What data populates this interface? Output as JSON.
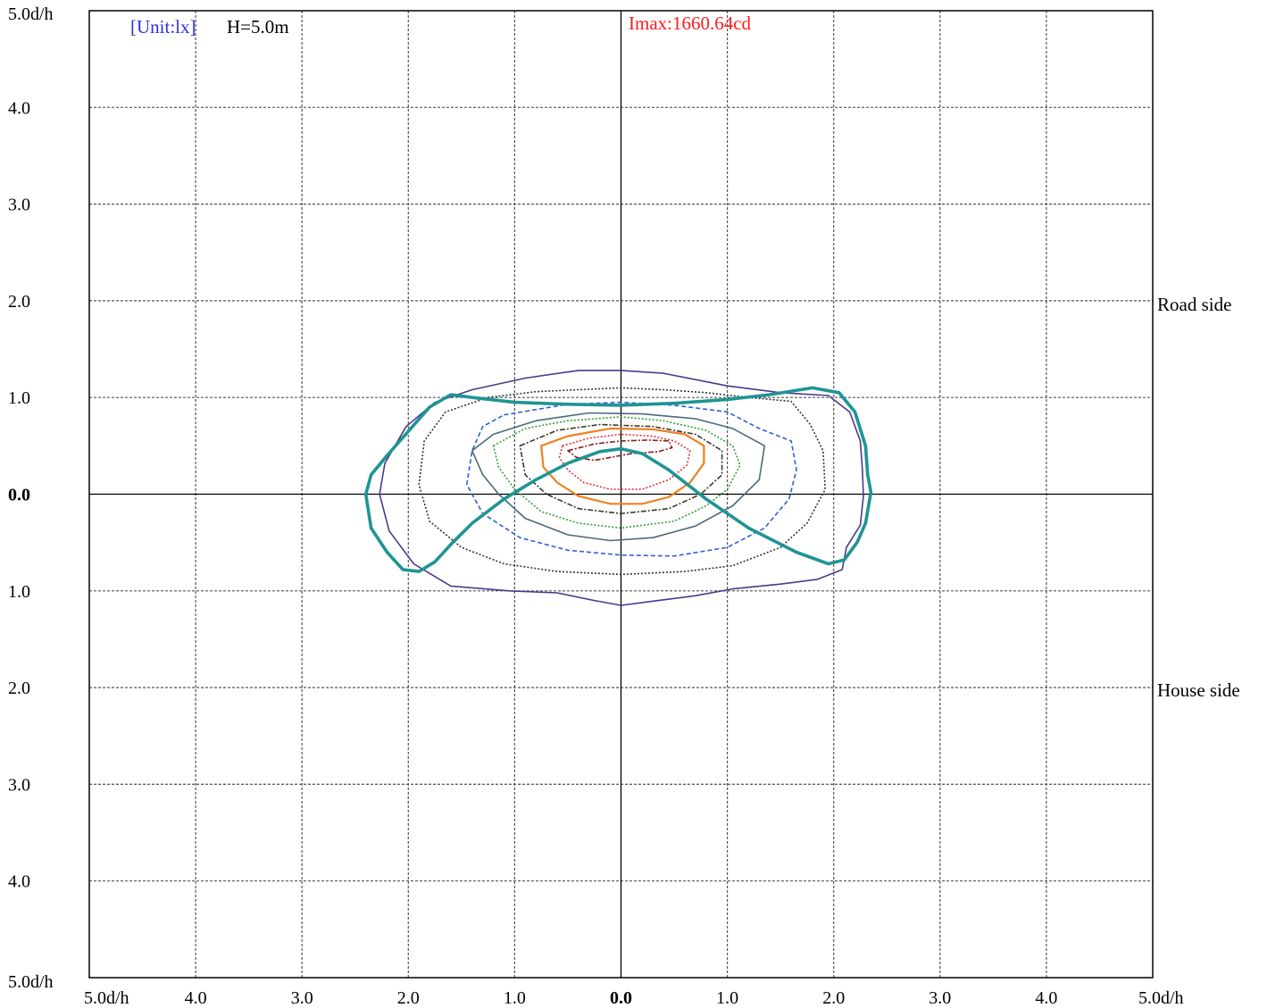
{
  "chart_data": {
    "type": "isolux contour",
    "header": {
      "unit_label": "[Unit:lx]",
      "height_label": "H=5.0m",
      "imax_label": "Imax:1660.64cd"
    },
    "colors": {
      "unit_label": "#3030e0",
      "height_label": "#000000",
      "imax_label": "#ff1a1a",
      "grid": "#555555",
      "axis": "#000000"
    },
    "xlim": [
      -5,
      5
    ],
    "ylim": [
      -5,
      5
    ],
    "x_tick_labels": [
      "5.0d/h",
      "4.0",
      "3.0",
      "2.0",
      "1.0",
      "0.0",
      "1.0",
      "2.0",
      "3.0",
      "4.0",
      "5.0d/h"
    ],
    "y_tick_labels": [
      "5.0d/h",
      "4.0",
      "3.0",
      "2.0",
      "1.0",
      "0.0",
      "1.0",
      "2.0",
      "3.0",
      "4.0",
      "5.0d/h"
    ],
    "side_labels": {
      "road": "Road side",
      "house": "House side"
    },
    "contours": [
      {
        "color": "#4a3a8c",
        "style": "solid",
        "weight": "thin",
        "points": [
          [
            2.08,
            -0.78
          ],
          [
            2.12,
            -0.55
          ],
          [
            2.25,
            -0.32
          ],
          [
            2.28,
            -0.02
          ],
          [
            2.27,
            0.25
          ],
          [
            2.25,
            0.55
          ],
          [
            2.15,
            0.85
          ],
          [
            1.95,
            1.02
          ],
          [
            1.5,
            1.05
          ],
          [
            1.0,
            1.12
          ],
          [
            0.4,
            1.25
          ],
          [
            0.0,
            1.28
          ],
          [
            -0.4,
            1.28
          ],
          [
            -0.9,
            1.2
          ],
          [
            -1.4,
            1.08
          ],
          [
            -1.75,
            0.95
          ],
          [
            -2.02,
            0.7
          ],
          [
            -2.22,
            0.32
          ],
          [
            -2.27,
            0.0
          ],
          [
            -2.18,
            -0.38
          ],
          [
            -1.95,
            -0.72
          ],
          [
            -1.6,
            -0.95
          ],
          [
            -1.05,
            -1.0
          ],
          [
            -0.6,
            -1.02
          ],
          [
            -0.25,
            -1.1
          ],
          [
            0.0,
            -1.15
          ],
          [
            0.35,
            -1.1
          ],
          [
            0.7,
            -1.05
          ],
          [
            1.05,
            -0.98
          ],
          [
            1.5,
            -0.93
          ],
          [
            1.85,
            -0.88
          ]
        ]
      },
      {
        "color": "#333333",
        "style": "dotted",
        "weight": "thin",
        "points": [
          [
            -1.25,
            1.0
          ],
          [
            -0.8,
            1.06
          ],
          [
            -0.4,
            1.08
          ],
          [
            0.0,
            1.1
          ],
          [
            0.4,
            1.08
          ],
          [
            0.8,
            1.05
          ],
          [
            1.2,
            1.0
          ],
          [
            1.6,
            0.96
          ],
          [
            1.78,
            0.72
          ],
          [
            1.9,
            0.45
          ],
          [
            1.92,
            0.05
          ],
          [
            1.75,
            -0.3
          ],
          [
            1.5,
            -0.55
          ],
          [
            1.05,
            -0.74
          ],
          [
            0.6,
            -0.8
          ],
          [
            0.0,
            -0.83
          ],
          [
            -0.6,
            -0.8
          ],
          [
            -1.1,
            -0.72
          ],
          [
            -1.5,
            -0.55
          ],
          [
            -1.8,
            -0.28
          ],
          [
            -1.9,
            0.1
          ],
          [
            -1.85,
            0.55
          ],
          [
            -1.65,
            0.85
          ]
        ]
      },
      {
        "color": "#2f5fd8",
        "style": "dashed",
        "weight": "thin",
        "points": [
          [
            -1.1,
            0.82
          ],
          [
            -0.5,
            0.93
          ],
          [
            0.0,
            0.95
          ],
          [
            0.5,
            0.92
          ],
          [
            1.0,
            0.85
          ],
          [
            1.3,
            0.68
          ],
          [
            1.6,
            0.55
          ],
          [
            1.65,
            0.25
          ],
          [
            1.58,
            -0.05
          ],
          [
            1.35,
            -0.35
          ],
          [
            1.0,
            -0.55
          ],
          [
            0.5,
            -0.64
          ],
          [
            0.0,
            -0.63
          ],
          [
            -0.5,
            -0.58
          ],
          [
            -0.95,
            -0.45
          ],
          [
            -1.3,
            -0.2
          ],
          [
            -1.45,
            0.1
          ],
          [
            -1.4,
            0.45
          ],
          [
            -1.3,
            0.7
          ]
        ]
      },
      {
        "color": "#4a6a7a",
        "style": "solid",
        "weight": "thin",
        "points": [
          [
            -1.2,
            0.62
          ],
          [
            -0.8,
            0.76
          ],
          [
            -0.3,
            0.84
          ],
          [
            0.2,
            0.83
          ],
          [
            0.7,
            0.78
          ],
          [
            1.05,
            0.68
          ],
          [
            1.35,
            0.5
          ],
          [
            1.3,
            0.15
          ],
          [
            1.05,
            -0.12
          ],
          [
            0.7,
            -0.33
          ],
          [
            0.3,
            -0.45
          ],
          [
            -0.1,
            -0.48
          ],
          [
            -0.5,
            -0.42
          ],
          [
            -0.9,
            -0.25
          ],
          [
            -1.15,
            0.0
          ],
          [
            -1.3,
            0.2
          ],
          [
            -1.4,
            0.45
          ]
        ]
      },
      {
        "color": "#2fa02f",
        "style": "dotted",
        "weight": "thin",
        "points": [
          [
            -1.2,
            0.5
          ],
          [
            -0.9,
            0.68
          ],
          [
            -0.5,
            0.76
          ],
          [
            0.0,
            0.8
          ],
          [
            0.4,
            0.76
          ],
          [
            0.8,
            0.66
          ],
          [
            1.05,
            0.5
          ],
          [
            1.12,
            0.3
          ],
          [
            1.0,
            0.05
          ],
          [
            0.8,
            -0.12
          ],
          [
            0.5,
            -0.28
          ],
          [
            0.0,
            -0.35
          ],
          [
            -0.4,
            -0.3
          ],
          [
            -0.75,
            -0.18
          ],
          [
            -1.0,
            0.05
          ],
          [
            -1.15,
            0.28
          ]
        ]
      },
      {
        "color": "#3a3a2a",
        "style": "dashdot",
        "weight": "thin",
        "points": [
          [
            -0.95,
            0.5
          ],
          [
            -0.6,
            0.66
          ],
          [
            -0.2,
            0.72
          ],
          [
            0.3,
            0.7
          ],
          [
            0.7,
            0.62
          ],
          [
            0.95,
            0.45
          ],
          [
            0.95,
            0.2
          ],
          [
            0.75,
            0.0
          ],
          [
            0.45,
            -0.15
          ],
          [
            0.0,
            -0.2
          ],
          [
            -0.4,
            -0.15
          ],
          [
            -0.7,
            0.0
          ],
          [
            -0.9,
            0.2
          ]
        ]
      },
      {
        "color": "#f08020",
        "style": "solid",
        "weight": "medium",
        "points": [
          [
            -0.75,
            0.5
          ],
          [
            -0.5,
            0.6
          ],
          [
            -0.1,
            0.68
          ],
          [
            0.3,
            0.67
          ],
          [
            0.6,
            0.62
          ],
          [
            0.78,
            0.5
          ],
          [
            0.78,
            0.32
          ],
          [
            0.65,
            0.12
          ],
          [
            0.45,
            -0.03
          ],
          [
            0.2,
            -0.1
          ],
          [
            -0.1,
            -0.1
          ],
          [
            -0.4,
            -0.02
          ],
          [
            -0.6,
            0.12
          ],
          [
            -0.73,
            0.28
          ]
        ]
      },
      {
        "color": "#e03030",
        "style": "dotted",
        "weight": "thin",
        "points": [
          [
            -0.55,
            0.5
          ],
          [
            -0.3,
            0.58
          ],
          [
            0.0,
            0.62
          ],
          [
            0.3,
            0.6
          ],
          [
            0.5,
            0.55
          ],
          [
            0.65,
            0.45
          ],
          [
            0.62,
            0.3
          ],
          [
            0.45,
            0.15
          ],
          [
            0.2,
            0.05
          ],
          [
            -0.1,
            0.05
          ],
          [
            -0.35,
            0.12
          ],
          [
            -0.5,
            0.25
          ],
          [
            -0.58,
            0.38
          ]
        ]
      },
      {
        "color": "#8b1a1a",
        "style": "dashdot",
        "weight": "thin",
        "points": [
          [
            -0.5,
            0.45
          ],
          [
            -0.25,
            0.52
          ],
          [
            0.0,
            0.55
          ],
          [
            0.25,
            0.56
          ],
          [
            0.45,
            0.55
          ],
          [
            0.48,
            0.48
          ],
          [
            0.35,
            0.44
          ],
          [
            0.1,
            0.42
          ],
          [
            -0.1,
            0.38
          ],
          [
            -0.25,
            0.35
          ],
          [
            -0.42,
            0.38
          ]
        ]
      }
    ],
    "curves": [
      {
        "color": "#1f9494",
        "style": "solid",
        "weight": "thick",
        "points": [
          [
            -2.4,
            0.0
          ],
          [
            -2.35,
            0.2
          ],
          [
            -2.2,
            0.4
          ],
          [
            -2.0,
            0.65
          ],
          [
            -1.8,
            0.9
          ],
          [
            -1.6,
            1.03
          ],
          [
            -1.4,
            1.0
          ],
          [
            -1.0,
            0.95
          ],
          [
            -0.5,
            0.93
          ],
          [
            0.0,
            0.92
          ],
          [
            0.5,
            0.94
          ],
          [
            1.0,
            0.98
          ],
          [
            1.4,
            1.03
          ],
          [
            1.8,
            1.1
          ],
          [
            2.05,
            1.05
          ],
          [
            2.2,
            0.85
          ],
          [
            2.3,
            0.5
          ],
          [
            2.32,
            0.2
          ],
          [
            2.35,
            0.02
          ],
          [
            2.3,
            -0.3
          ],
          [
            2.22,
            -0.5
          ],
          [
            2.1,
            -0.68
          ],
          [
            1.95,
            -0.72
          ],
          [
            1.65,
            -0.6
          ],
          [
            1.2,
            -0.35
          ],
          [
            0.8,
            -0.05
          ],
          [
            0.45,
            0.25
          ],
          [
            0.2,
            0.42
          ],
          [
            0.0,
            0.47
          ],
          [
            -0.2,
            0.44
          ],
          [
            -0.5,
            0.32
          ],
          [
            -0.8,
            0.15
          ],
          [
            -1.1,
            -0.05
          ],
          [
            -1.4,
            -0.3
          ],
          [
            -1.6,
            -0.52
          ],
          [
            -1.75,
            -0.7
          ],
          [
            -1.9,
            -0.8
          ],
          [
            -2.05,
            -0.78
          ],
          [
            -2.2,
            -0.6
          ],
          [
            -2.35,
            -0.35
          ]
        ]
      }
    ]
  }
}
